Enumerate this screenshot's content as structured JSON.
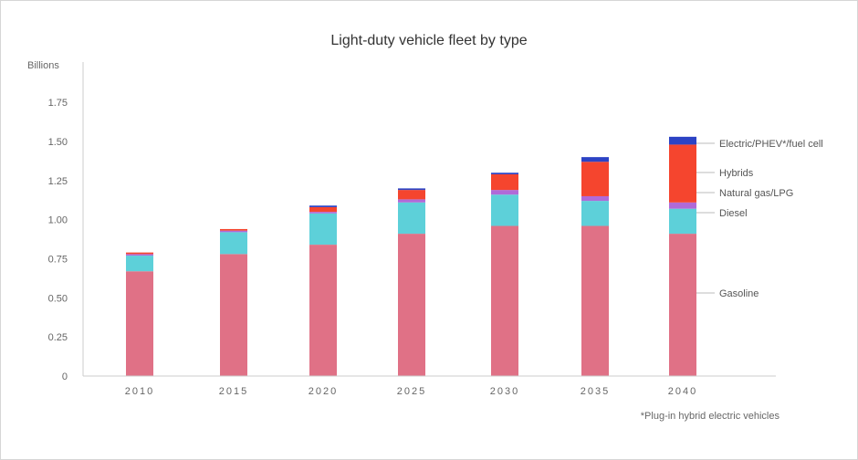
{
  "chart_data": {
    "type": "bar",
    "stacked": true,
    "title": "Light-duty vehicle fleet by type",
    "ylabel": "Billions",
    "xlabel": "",
    "ylim": [
      0,
      2.0
    ],
    "yticks": [
      "0",
      "0.25",
      "0.50",
      "0.75",
      "1.00",
      "1.25",
      "1.50",
      "1.75"
    ],
    "categories": [
      "2010",
      "2015",
      "2020",
      "2025",
      "2030",
      "2035",
      "2040"
    ],
    "series": [
      {
        "name": "Gasoline",
        "color": "#e07186",
        "values": [
          0.67,
          0.78,
          0.84,
          0.91,
          0.96,
          0.96,
          0.91
        ]
      },
      {
        "name": "Diesel",
        "color": "#5dd0d9",
        "values": [
          0.1,
          0.14,
          0.2,
          0.2,
          0.2,
          0.16,
          0.16
        ]
      },
      {
        "name": "Natural gas/LPG",
        "color": "#b06ad8",
        "values": [
          0.01,
          0.01,
          0.01,
          0.02,
          0.03,
          0.03,
          0.04
        ]
      },
      {
        "name": "Hybrids",
        "color": "#f5452e",
        "values": [
          0.01,
          0.01,
          0.03,
          0.06,
          0.1,
          0.22,
          0.37
        ]
      },
      {
        "name": "Electric/PHEV*/fuel cell",
        "color": "#2c43c4",
        "values": [
          0.0,
          0.0,
          0.01,
          0.01,
          0.01,
          0.03,
          0.05
        ]
      }
    ],
    "grid": false,
    "legend": "right (direct labels beside 2040 bar)",
    "footnote": "*Plug-in hybrid electric vehicles"
  }
}
